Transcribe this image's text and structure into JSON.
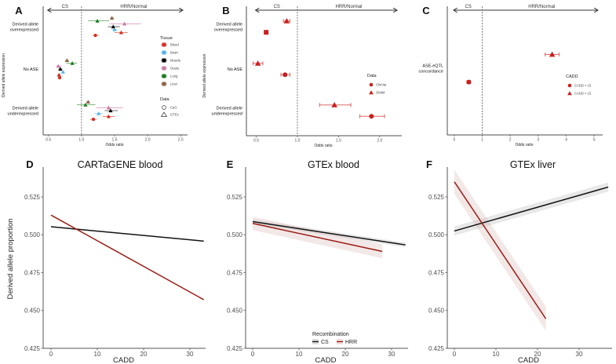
{
  "chart_data": [
    {
      "panel": "A",
      "type": "scatter",
      "subtype": "forest-plot",
      "title": "",
      "xlabel": "Odds ratio",
      "ylabel": "Derived allele expression",
      "xlim": [
        0.42,
        2.58
      ],
      "xticks": [
        "0.5",
        "1.0",
        "1.5",
        "2.0",
        "2.5"
      ],
      "xtick_values": [
        0.5,
        1.0,
        1.5,
        2.0,
        2.5
      ],
      "reference_line": 1.0,
      "direction_labels": {
        "left": "CS",
        "right": "HRR/Normal"
      },
      "categories": [
        "Derived allele overexpressed",
        "No ASE",
        "Derived allele underexpressed"
      ],
      "category_display": [
        [
          "Derived allele",
          "overexpressed"
        ],
        [
          "No ASE"
        ],
        [
          "Derived allele",
          "underexpressed"
        ]
      ],
      "legend": {
        "tissue_title": "Tissue",
        "tissues": [
          {
            "name": "Blood",
            "color": "#d62d20"
          },
          {
            "name": "Brain",
            "color": "#56b4e9"
          },
          {
            "name": "Muscle",
            "color": "#000000"
          },
          {
            "name": "Ovary",
            "color": "#cc79a7"
          },
          {
            "name": "Lung",
            "color": "#1b7a1b"
          },
          {
            "name": "Liver",
            "color": "#8c6246"
          }
        ],
        "data_title": "Data",
        "data": [
          {
            "name": "CaG",
            "shape": "circle"
          },
          {
            "name": "GTEx",
            "shape": "triangle"
          }
        ]
      },
      "points": [
        {
          "category": "Derived allele overexpressed",
          "tissue": "Liver",
          "data": "GTEx",
          "or": 1.46,
          "lo": 1.43,
          "hi": 1.49
        },
        {
          "category": "Derived allele overexpressed",
          "tissue": "Lung",
          "data": "GTEx",
          "or": 1.24,
          "lo": 1.1,
          "hi": 1.42
        },
        {
          "category": "Derived allele overexpressed",
          "tissue": "Ovary",
          "data": "GTEx",
          "or": 1.65,
          "lo": 1.42,
          "hi": 1.9
        },
        {
          "category": "Derived allele overexpressed",
          "tissue": "Muscle",
          "data": "GTEx",
          "or": 1.48,
          "lo": 1.4,
          "hi": 1.58
        },
        {
          "category": "Derived allele overexpressed",
          "tissue": "Brain",
          "data": "GTEx",
          "or": 1.5,
          "lo": 1.46,
          "hi": 1.54
        },
        {
          "category": "Derived allele overexpressed",
          "tissue": "Blood",
          "data": "GTEx",
          "or": 1.6,
          "lo": 1.5,
          "hi": 1.7
        },
        {
          "category": "Derived allele overexpressed",
          "tissue": "Blood",
          "data": "CaG",
          "or": 1.21,
          "lo": 1.17,
          "hi": 1.26
        },
        {
          "category": "No ASE",
          "tissue": "Liver",
          "data": "GTEx",
          "or": 0.78,
          "lo": 0.75,
          "hi": 0.81
        },
        {
          "category": "No ASE",
          "tissue": "Lung",
          "data": "GTEx",
          "or": 0.86,
          "lo": 0.77,
          "hi": 0.93
        },
        {
          "category": "No ASE",
          "tissue": "Ovary",
          "data": "GTEx",
          "or": 0.65,
          "lo": 0.61,
          "hi": 0.7
        },
        {
          "category": "No ASE",
          "tissue": "Muscle",
          "data": "GTEx",
          "or": 0.68,
          "lo": 0.65,
          "hi": 0.71
        },
        {
          "category": "No ASE",
          "tissue": "Brain",
          "data": "GTEx",
          "or": 0.72,
          "lo": 0.7,
          "hi": 0.74
        },
        {
          "category": "No ASE",
          "tissue": "Blood",
          "data": "GTEx",
          "or": 0.66,
          "lo": 0.64,
          "hi": 0.68
        },
        {
          "category": "No ASE",
          "tissue": "Blood",
          "data": "CaG",
          "or": 0.67,
          "lo": 0.65,
          "hi": 0.69
        },
        {
          "category": "Derived allele underexpressed",
          "tissue": "Liver",
          "data": "GTEx",
          "or": 1.1,
          "lo": 1.07,
          "hi": 1.13
        },
        {
          "category": "Derived allele underexpressed",
          "tissue": "Lung",
          "data": "GTEx",
          "or": 1.06,
          "lo": 0.93,
          "hi": 1.21
        },
        {
          "category": "Derived allele underexpressed",
          "tissue": "Ovary",
          "data": "GTEx",
          "or": 1.41,
          "lo": 1.22,
          "hi": 1.63
        },
        {
          "category": "Derived allele underexpressed",
          "tissue": "Muscle",
          "data": "GTEx",
          "or": 1.44,
          "lo": 1.35,
          "hi": 1.55
        },
        {
          "category": "Derived allele underexpressed",
          "tissue": "Brain",
          "data": "GTEx",
          "or": 1.26,
          "lo": 1.2,
          "hi": 1.32
        },
        {
          "category": "Derived allele underexpressed",
          "tissue": "Blood",
          "data": "GTEx",
          "or": 1.41,
          "lo": 1.32,
          "hi": 1.5
        },
        {
          "category": "Derived allele underexpressed",
          "tissue": "Blood",
          "data": "CaG",
          "or": 1.18,
          "lo": 1.13,
          "hi": 1.23
        }
      ]
    },
    {
      "panel": "B",
      "type": "scatter",
      "subtype": "forest-plot",
      "xlabel": "Odds ratio",
      "ylabel": "Derived allele expression",
      "xlim": [
        0.38,
        2.25
      ],
      "xticks": [
        "0.5",
        "1.0",
        "1.5",
        "2.0"
      ],
      "xtick_values": [
        0.5,
        1.0,
        1.5,
        2.0
      ],
      "reference_line": 1.0,
      "direction_labels": {
        "left": "CS",
        "right": "HRR/Normal"
      },
      "categories": [
        "Derived allele overexpressed",
        "No ASE",
        "Derived allele underexpressed"
      ],
      "category_display": [
        [
          "Derived allele",
          "overexpressed"
        ],
        [
          "No ASE"
        ],
        [
          "Derived allele",
          "underexpressed"
        ]
      ],
      "color": "#c8201e",
      "legend": {
        "title": "Data",
        "items": [
          {
            "name": "ClinVar",
            "shape": "circle"
          },
          {
            "name": "OMIM",
            "shape": "triangle"
          }
        ]
      },
      "points": [
        {
          "category": "Derived allele overexpressed",
          "data": "OMIM",
          "or": 0.87,
          "lo": 0.83,
          "hi": 0.91
        },
        {
          "category": "Derived allele overexpressed",
          "data": "ClinVar",
          "or": 0.62,
          "lo": 0.6,
          "hi": 0.64
        },
        {
          "category": "No ASE",
          "data": "OMIM",
          "or": 0.52,
          "lo": 0.46,
          "hi": 0.58
        },
        {
          "category": "No ASE",
          "data": "ClinVar",
          "or": 0.85,
          "lo": 0.8,
          "hi": 0.91
        },
        {
          "category": "Derived allele underexpressed",
          "data": "OMIM",
          "or": 1.45,
          "lo": 1.27,
          "hi": 1.65
        },
        {
          "category": "Derived allele underexpressed",
          "data": "ClinVar",
          "or": 1.9,
          "lo": 1.76,
          "hi": 2.06
        }
      ]
    },
    {
      "panel": "C",
      "type": "scatter",
      "subtype": "forest-plot",
      "xlabel": "Odds ratio",
      "ylabel": "",
      "xlim": [
        -0.25,
        5.25
      ],
      "xticks": [
        "0",
        "1",
        "2",
        "3",
        "4",
        "5"
      ],
      "xtick_values": [
        0,
        1,
        2,
        3,
        4,
        5
      ],
      "reference_line": 1.0,
      "direction_labels": {
        "left": "CS",
        "right": "HRR/Normal"
      },
      "categories": [
        "ASE-eQTL concordance"
      ],
      "category_display": [
        [
          "ASE-eQTL",
          "concordance"
        ]
      ],
      "color": "#c8201e",
      "legend": {
        "title": "CADD",
        "items": [
          {
            "name": "CADD < 15",
            "shape": "circle"
          },
          {
            "name": "CADD > 15",
            "shape": "triangle"
          }
        ]
      },
      "points": [
        {
          "category": "ASE-eQTL concordance",
          "data": "CADD > 15",
          "or": 3.5,
          "lo": 3.25,
          "hi": 3.75
        },
        {
          "category": "ASE-eQTL concordance",
          "data": "CADD < 15",
          "or": 0.52,
          "lo": 0.45,
          "hi": 0.58
        }
      ]
    },
    {
      "panel": "D",
      "type": "line",
      "title": "CARTaGENE blood",
      "xlabel": "CADD",
      "ylabel": "Derived allele proportion",
      "xlim": [
        -1.5,
        36
      ],
      "ylim": [
        0.425,
        0.545
      ],
      "xticks": [
        "0",
        "10",
        "20",
        "30"
      ],
      "xtick_values": [
        0,
        10,
        20,
        30
      ],
      "yticks": [
        "0.425",
        "0.450",
        "0.475",
        "0.500",
        "0.525"
      ],
      "ytick_values": [
        0.425,
        0.45,
        0.475,
        0.5,
        0.525
      ],
      "series": [
        {
          "name": "CS",
          "color": "#111111",
          "x": [
            0,
            33
          ],
          "y": [
            0.5053,
            0.4958
          ],
          "band": 0
        },
        {
          "name": "HRR",
          "color": "#9b1c14",
          "x": [
            0,
            33
          ],
          "y": [
            0.513,
            0.4571
          ],
          "band": 0
        }
      ]
    },
    {
      "panel": "E",
      "type": "line",
      "title": "GTEx blood",
      "xlabel": "CADD",
      "ylabel": "",
      "xlim": [
        -1.5,
        34.5
      ],
      "ylim": [
        0.425,
        0.545
      ],
      "xticks": [
        "0",
        "10",
        "20",
        "30"
      ],
      "xtick_values": [
        0,
        10,
        20,
        30
      ],
      "yticks": [
        "0.425",
        "0.450",
        "0.475",
        "0.500",
        "0.525"
      ],
      "ytick_values": [
        0.425,
        0.45,
        0.475,
        0.5,
        0.525
      ],
      "legend": {
        "title": "Recombination",
        "items": [
          {
            "name": "CS",
            "color": "#111111"
          },
          {
            "name": "HRR",
            "color": "#9b1c14"
          }
        ]
      },
      "series": [
        {
          "name": "CS",
          "color": "#111111",
          "x": [
            0,
            33
          ],
          "y": [
            0.5087,
            0.4933
          ],
          "band": 0.0015
        },
        {
          "name": "HRR",
          "color": "#9b1c14",
          "x": [
            0,
            28
          ],
          "y": [
            0.5075,
            0.489
          ],
          "band": 0.0045
        }
      ]
    },
    {
      "panel": "F",
      "type": "line",
      "title": "GTEx liver",
      "xlabel": "CADD",
      "ylabel": "",
      "xlim": [
        -1.5,
        38
      ],
      "ylim": [
        0.425,
        0.545
      ],
      "xticks": [
        "0",
        "10",
        "20",
        "30"
      ],
      "xtick_values": [
        0,
        10,
        20,
        30
      ],
      "yticks": [
        "0.425",
        "0.450",
        "0.475",
        "0.500",
        "0.525"
      ],
      "ytick_values": [
        0.425,
        0.45,
        0.475,
        0.5,
        0.525
      ],
      "series": [
        {
          "name": "CS",
          "color": "#111111",
          "x": [
            0,
            37
          ],
          "y": [
            0.5025,
            0.5315
          ],
          "band": 0.003
        },
        {
          "name": "HRR",
          "color": "#9b1c14",
          "x": [
            0,
            22
          ],
          "y": [
            0.535,
            0.4445
          ],
          "band": 0.008
        }
      ]
    }
  ]
}
